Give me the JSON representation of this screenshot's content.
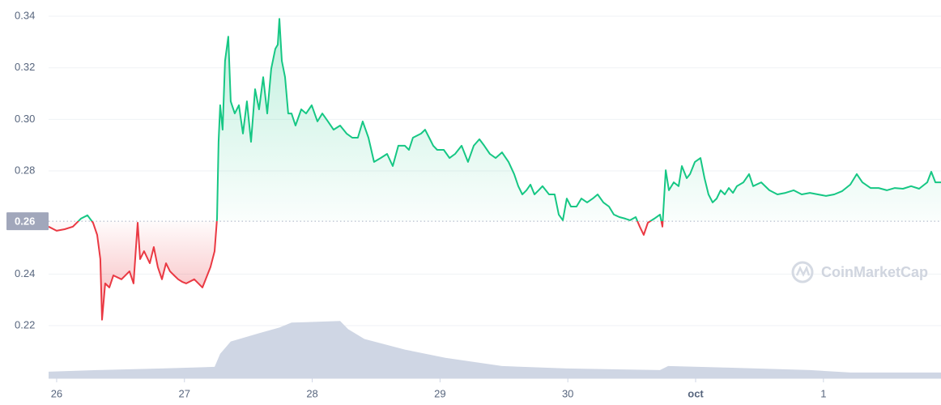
{
  "chart_data": {
    "type": "line",
    "watermark": "CoinMarketCap",
    "xlim": [
      -0.063,
      6.92
    ],
    "xticks": [
      {
        "value": 0,
        "label": "26"
      },
      {
        "value": 1,
        "label": "27"
      },
      {
        "value": 2,
        "label": "28"
      },
      {
        "value": 3,
        "label": "29"
      },
      {
        "value": 4,
        "label": "30"
      },
      {
        "value": 5,
        "label": "oct"
      },
      {
        "value": 6,
        "label": "1"
      }
    ],
    "ylim": [
      0.1996,
      0.3463
    ],
    "yticks": [
      0.22,
      0.24,
      0.28,
      {
        "value": 0.3,
        "label": "0.30"
      },
      0.32,
      0.34
    ],
    "grid": true,
    "reference_price": {
      "value": 0.2605,
      "label": "0.26"
    },
    "above_color": "#16c784",
    "below_color": "#ea3943",
    "series": [
      {
        "name": "Price",
        "x": [
          -0.063,
          0,
          0.063,
          0.127,
          0.19,
          0.241,
          0.285,
          0.317,
          0.342,
          0.355,
          0.38,
          0.412,
          0.444,
          0.507,
          0.57,
          0.602,
          0.634,
          0.653,
          0.684,
          0.729,
          0.76,
          0.792,
          0.824,
          0.856,
          0.887,
          0.919,
          0.951,
          0.982,
          1.014,
          1.077,
          1.141,
          1.204,
          1.236,
          1.255,
          1.267,
          1.28,
          1.299,
          1.318,
          1.343,
          1.362,
          1.394,
          1.426,
          1.458,
          1.489,
          1.521,
          1.553,
          1.584,
          1.616,
          1.648,
          1.679,
          1.711,
          1.73,
          1.743,
          1.762,
          1.787,
          1.812,
          1.838,
          1.869,
          1.914,
          1.952,
          1.996,
          2.041,
          2.079,
          2.123,
          2.167,
          2.218,
          2.269,
          2.313,
          2.357,
          2.395,
          2.44,
          2.484,
          2.535,
          2.586,
          2.63,
          2.674,
          2.725,
          2.757,
          2.788,
          2.852,
          2.883,
          2.915,
          2.947,
          2.978,
          3.029,
          3.074,
          3.118,
          3.169,
          3.219,
          3.264,
          3.308,
          3.346,
          3.39,
          3.435,
          3.485,
          3.536,
          3.58,
          3.612,
          3.644,
          3.676,
          3.707,
          3.739,
          3.771,
          3.802,
          3.853,
          3.897,
          3.929,
          3.961,
          3.992,
          4.024,
          4.068,
          4.106,
          4.151,
          4.195,
          4.233,
          4.278,
          4.322,
          4.36,
          4.404,
          4.449,
          4.487,
          4.531,
          4.563,
          4.594,
          4.626,
          4.677,
          4.721,
          4.74,
          4.766,
          4.791,
          4.829,
          4.867,
          4.892,
          4.93,
          4.956,
          4.994,
          5.038,
          5.07,
          5.101,
          5.133,
          5.165,
          5.196,
          5.228,
          5.26,
          5.292,
          5.323,
          5.374,
          5.418,
          5.45,
          5.513,
          5.577,
          5.64,
          5.703,
          5.767,
          5.83,
          5.894,
          5.957,
          6.02,
          6.084,
          6.147,
          6.21,
          6.261,
          6.305,
          6.369,
          6.432,
          6.496,
          6.559,
          6.622,
          6.686,
          6.749,
          6.812,
          6.844,
          6.876,
          6.92
        ],
        "values": [
          0.2584,
          0.2568,
          0.2574,
          0.2584,
          0.2615,
          0.2628,
          0.2599,
          0.2552,
          0.2458,
          0.2223,
          0.2364,
          0.2348,
          0.2395,
          0.238,
          0.2411,
          0.2364,
          0.2599,
          0.2458,
          0.2489,
          0.2442,
          0.2505,
          0.2427,
          0.238,
          0.2442,
          0.2411,
          0.2395,
          0.238,
          0.237,
          0.2364,
          0.238,
          0.2348,
          0.2427,
          0.2489,
          0.2615,
          0.2913,
          0.3055,
          0.296,
          0.3227,
          0.3321,
          0.307,
          0.3023,
          0.3055,
          0.2945,
          0.307,
          0.2913,
          0.3117,
          0.3039,
          0.3164,
          0.3023,
          0.3196,
          0.3274,
          0.329,
          0.339,
          0.3227,
          0.3164,
          0.3023,
          0.3023,
          0.2976,
          0.3039,
          0.3023,
          0.3055,
          0.2992,
          0.3023,
          0.2992,
          0.296,
          0.2976,
          0.2945,
          0.2929,
          0.2929,
          0.2992,
          0.2929,
          0.2835,
          0.285,
          0.2866,
          0.2819,
          0.2898,
          0.2898,
          0.2882,
          0.2929,
          0.2945,
          0.296,
          0.2929,
          0.2898,
          0.2882,
          0.2882,
          0.285,
          0.2866,
          0.2898,
          0.2835,
          0.2898,
          0.2923,
          0.2898,
          0.2866,
          0.285,
          0.2872,
          0.2835,
          0.2788,
          0.2741,
          0.2709,
          0.2725,
          0.2747,
          0.2709,
          0.2725,
          0.2741,
          0.2709,
          0.2709,
          0.2631,
          0.2609,
          0.2693,
          0.2662,
          0.2662,
          0.2693,
          0.2678,
          0.2693,
          0.2709,
          0.2678,
          0.2662,
          0.2631,
          0.2621,
          0.2615,
          0.2609,
          0.2621,
          0.2584,
          0.2552,
          0.2599,
          0.2615,
          0.2631,
          0.2584,
          0.2803,
          0.2725,
          0.2756,
          0.2741,
          0.2819,
          0.2772,
          0.2788,
          0.2835,
          0.285,
          0.2772,
          0.2709,
          0.2678,
          0.2693,
          0.2725,
          0.2709,
          0.2734,
          0.2715,
          0.2741,
          0.2756,
          0.2788,
          0.2741,
          0.2756,
          0.2725,
          0.2709,
          0.2715,
          0.2725,
          0.2709,
          0.2715,
          0.2709,
          0.2703,
          0.2709,
          0.2722,
          0.2747,
          0.2788,
          0.2756,
          0.2734,
          0.2734,
          0.2725,
          0.2734,
          0.2731,
          0.2741,
          0.2731,
          0.2756,
          0.2797,
          0.2756,
          0.2756
        ]
      },
      {
        "name": "Volume",
        "axis": "y2",
        "color": "#cfd6e4",
        "x": [
          -0.063,
          0.317,
          0.824,
          1.236,
          1.28,
          1.362,
          1.584,
          1.743,
          1.838,
          2.218,
          2.281,
          2.408,
          2.725,
          3.042,
          3.485,
          3.992,
          4.721,
          4.785,
          5.26,
          5.894,
          6.21,
          6.92
        ],
        "values": [
          8,
          10,
          12,
          14,
          30,
          45,
          55,
          62,
          68,
          70,
          60,
          48,
          35,
          25,
          15,
          12,
          10,
          15,
          13,
          10,
          7,
          7
        ]
      }
    ],
    "y2lim": [
      0,
      100
    ]
  }
}
